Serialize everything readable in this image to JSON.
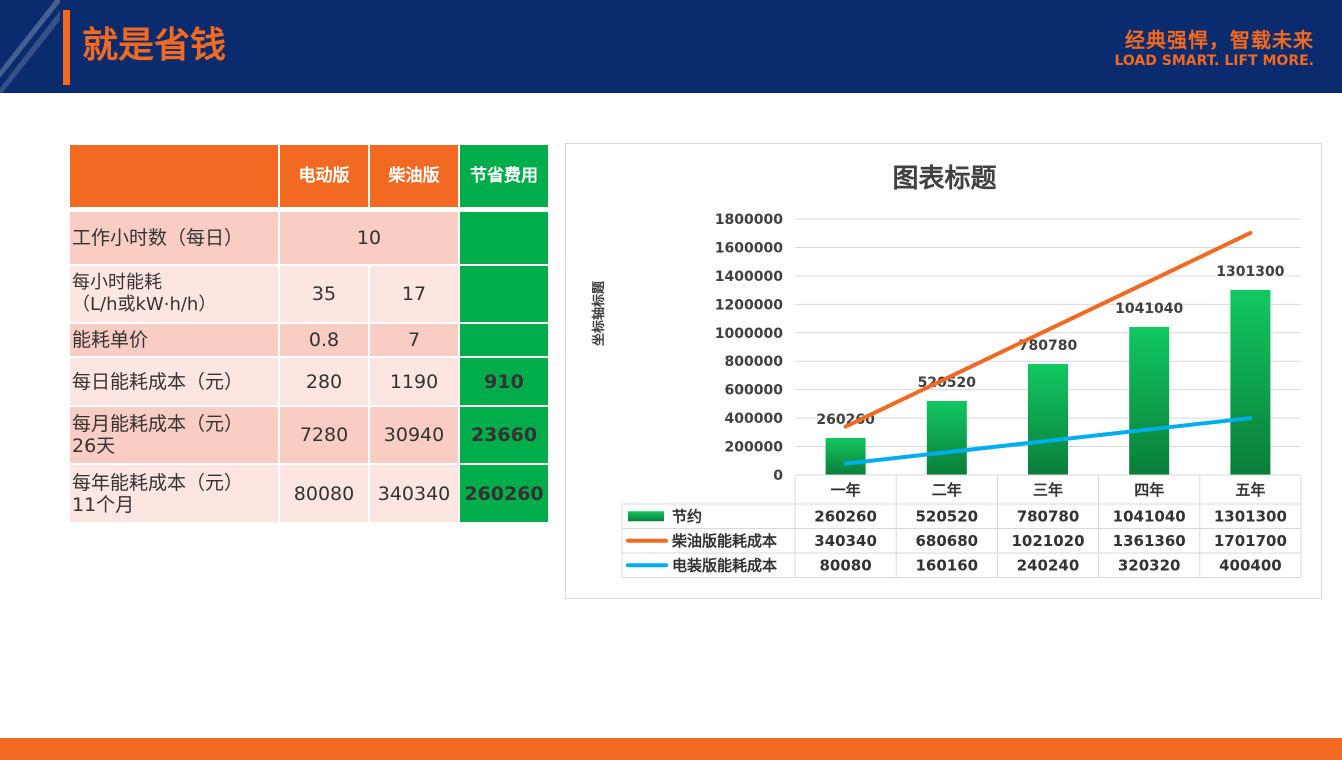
{
  "header": {
    "title": "就是省钱",
    "slogan_cn": "经典强悍，智载未来",
    "slogan_en": "LOAD SMART. LIFT MORE."
  },
  "colors": {
    "navy": "#0a2b6e",
    "orange": "#f26a21",
    "green": "#00ad4a",
    "blue": "#00aeef",
    "pink": "#f9cdc4"
  },
  "table": {
    "headers": [
      "",
      "电动版",
      "柴油版",
      "节省费用"
    ],
    "rows": [
      {
        "label": "工作小时数（每日）",
        "electric": "10",
        "diesel": "",
        "saving": "",
        "merged": true
      },
      {
        "label": "每小时能耗\n（L/h或kW·h/h）",
        "electric": "35",
        "diesel": "17",
        "saving": ""
      },
      {
        "label": "能耗单价",
        "electric": "0.8",
        "diesel": "7",
        "saving": ""
      },
      {
        "label": "每日能耗成本（元）",
        "electric": "280",
        "diesel": "1190",
        "saving": "910"
      },
      {
        "label": "每月能耗成本（元）\n26天",
        "electric": "7280",
        "diesel": "30940",
        "saving": "23660"
      },
      {
        "label": "每年能耗成本（元）\n11个月",
        "electric": "80080",
        "diesel": "340340",
        "saving": "260260"
      }
    ]
  },
  "chart_data": {
    "type": "bar",
    "title": "图表标题",
    "ylabel": "坐标轴标题",
    "categories": [
      "一年",
      "二年",
      "三年",
      "四年",
      "五年"
    ],
    "ylim": [
      0,
      1800000
    ],
    "yticks": [
      "0",
      "200000",
      "400000",
      "600000",
      "800000",
      "1000000",
      "1200000",
      "1400000",
      "1600000",
      "1800000"
    ],
    "grid": true,
    "legend": "data-table-bottom",
    "series": [
      {
        "name": "节约",
        "type": "bar",
        "color": "#00ad4a",
        "values": [
          260260,
          520520,
          780780,
          1041040,
          1301300
        ],
        "labels": [
          "260260",
          "520520",
          "780780",
          "1041040",
          "1301300"
        ]
      },
      {
        "name": "柴油版能耗成本",
        "type": "line",
        "color": "#f26a21",
        "values": [
          340340,
          680680,
          1021020,
          1361360,
          1701700
        ],
        "labels": [
          "340340",
          "680680",
          "1021020",
          "1361360",
          "1701700"
        ]
      },
      {
        "name": "电装版能耗成本",
        "type": "line",
        "color": "#00aeef",
        "values": [
          80080,
          160160,
          240240,
          320320,
          400400
        ],
        "labels": [
          "80080",
          "160160",
          "240240",
          "320320",
          "400400"
        ]
      }
    ]
  }
}
